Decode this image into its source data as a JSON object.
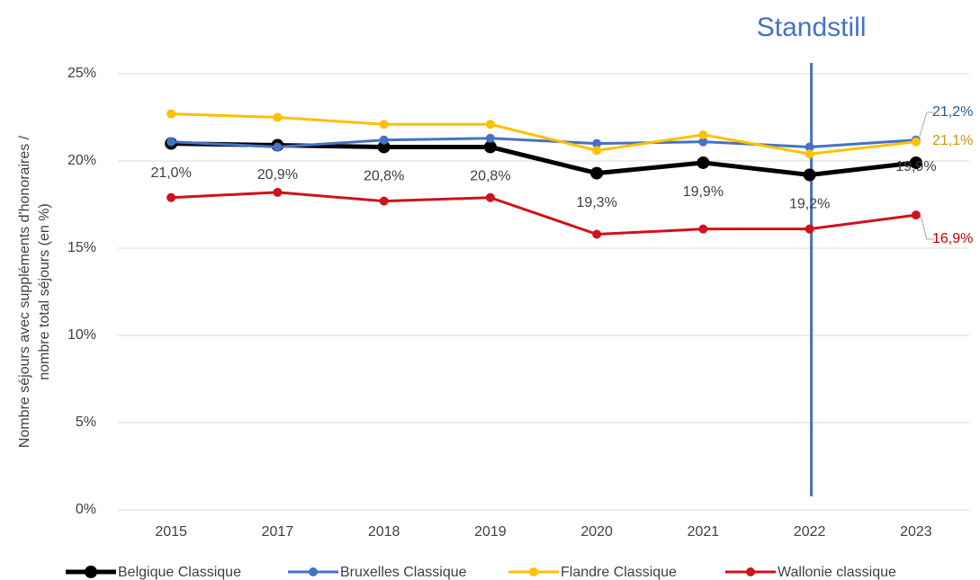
{
  "chart_data": {
    "type": "line",
    "ylabel": [
      "Nombre séjours avec suppléments d'honoraires /",
      "nombre total séjours (en %)"
    ],
    "annotation": {
      "label": "Standstill",
      "x": "2022",
      "color": "#4472c4"
    },
    "categories": [
      "2015",
      "2017",
      "2018",
      "2019",
      "2020",
      "2021",
      "2022",
      "2023"
    ],
    "series": [
      {
        "name": "Belgique Classique",
        "color": "#000000",
        "values": [
          21.0,
          20.9,
          20.8,
          20.8,
          19.3,
          19.9,
          19.2,
          19.9
        ],
        "value_labels": [
          "21,0%",
          "20,9%",
          "20,8%",
          "20,8%",
          "19,3%",
          "19,9%",
          "19,2%",
          "19,9%"
        ]
      },
      {
        "name": "Bruxelles Classique",
        "color": "#4472c4",
        "values": [
          21.1,
          20.8,
          21.2,
          21.3,
          21.0,
          21.1,
          20.8,
          21.2
        ],
        "value_labels": [
          null,
          null,
          null,
          null,
          null,
          null,
          null,
          "21,2%"
        ],
        "label_color": "#1f5f8b"
      },
      {
        "name": "Flandre Classique",
        "color": "#ffc000",
        "values": [
          22.7,
          22.5,
          22.1,
          22.1,
          20.6,
          21.5,
          20.4,
          21.1
        ],
        "value_labels": [
          null,
          null,
          null,
          null,
          null,
          null,
          null,
          "21,1%"
        ],
        "label_color": "#c9960c"
      },
      {
        "name": "Wallonie classique",
        "color": "#d0121b",
        "values": [
          17.9,
          18.2,
          17.7,
          17.9,
          15.8,
          16.1,
          16.1,
          16.9
        ],
        "value_labels": [
          null,
          null,
          null,
          null,
          null,
          null,
          null,
          "16,9%"
        ],
        "label_color": "#c00000"
      }
    ],
    "ylim": [
      0,
      25
    ],
    "yticks": [
      {
        "value": 0,
        "label": "0%"
      },
      {
        "value": 5,
        "label": "5%"
      },
      {
        "value": 10,
        "label": "10%"
      },
      {
        "value": 15,
        "label": "15%"
      },
      {
        "value": 20,
        "label": "20%"
      },
      {
        "value": 25,
        "label": "25%"
      }
    ],
    "grid": true,
    "legend": "bottom"
  }
}
